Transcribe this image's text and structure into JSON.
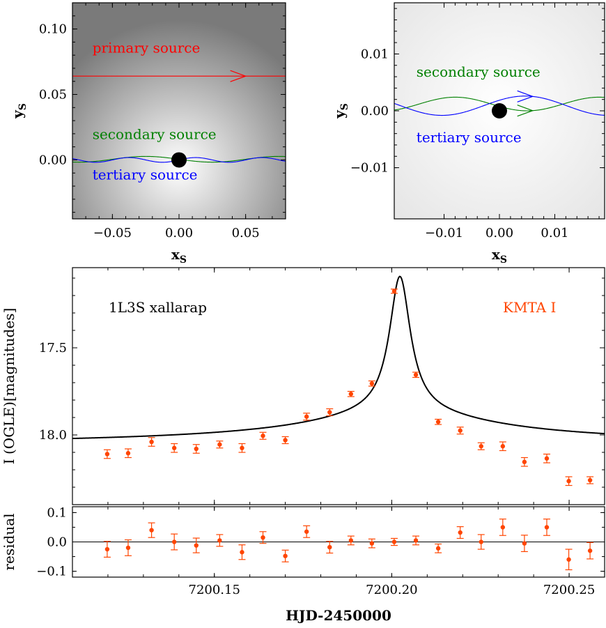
{
  "chart_data": [
    {
      "type": "line",
      "panel": "top-left",
      "xlabel": "x",
      "xlabel_sub": "S",
      "ylabel": "y",
      "ylabel_sub": "S",
      "xlim": [
        -0.08,
        0.08
      ],
      "ylim": [
        -0.045,
        0.12
      ],
      "xticks": [
        -0.05,
        0.0,
        0.05
      ],
      "xtick_labels": [
        "−0.05",
        "0.00",
        "0.05"
      ],
      "yticks": [
        0.0,
        0.05,
        0.1
      ],
      "ytick_labels": [
        "0.00",
        "0.05",
        "0.10"
      ],
      "lens": {
        "x": 0.0,
        "y": 0.0
      },
      "series": [
        {
          "name": "primary source",
          "color": "#ff0000",
          "y": 0.064,
          "amplitude": 0.0,
          "period": 1,
          "phase": 0,
          "arrow_x": 0.05
        },
        {
          "name": "secondary source",
          "color": "#008000",
          "y": 0.0005,
          "amplitude": 0.0022,
          "period": 0.1,
          "phase": 3.14,
          "arrow_x": null
        },
        {
          "name": "tertiary source",
          "color": "#0000ff",
          "y": 0.0,
          "amplitude": 0.0018,
          "period": 0.05,
          "phase": 0,
          "arrow_x": null
        }
      ],
      "labels": [
        {
          "text": "primary source",
          "color": "#ff0000",
          "x": -0.065,
          "y": 0.082
        },
        {
          "text": "secondary source",
          "color": "#008000",
          "x": -0.065,
          "y": 0.016
        },
        {
          "text": "tertiary source",
          "color": "#0000ff",
          "x": -0.065,
          "y": -0.015
        }
      ]
    },
    {
      "type": "line",
      "panel": "top-right",
      "xlabel": "x",
      "xlabel_sub": "S",
      "ylabel": "y",
      "ylabel_sub": "S",
      "xlim": [
        -0.019,
        0.019
      ],
      "ylim": [
        -0.019,
        0.019
      ],
      "xticks": [
        -0.01,
        0.0,
        0.01
      ],
      "xtick_labels": [
        "−0.01",
        "0.00",
        "0.01"
      ],
      "yticks": [
        -0.01,
        0.0,
        0.01
      ],
      "ytick_labels": [
        "−0.01",
        "0.00",
        "0.01"
      ],
      "lens": {
        "x": 0.0,
        "y": 0.0
      },
      "series": [
        {
          "name": "secondary source",
          "color": "#008000",
          "y": 0.0012,
          "amplitude": 0.0012,
          "period": 0.026,
          "phase": 3.5,
          "arrow_x": 0.006
        },
        {
          "name": "tertiary source",
          "color": "#0000ff",
          "y": 0.0009,
          "amplitude": 0.0017,
          "period": 0.03,
          "phase": 0.6,
          "arrow_x": 0.006
        }
      ],
      "labels": [
        {
          "text": "secondary source",
          "color": "#008000",
          "x": -0.015,
          "y": 0.006
        },
        {
          "text": "tertiary source",
          "color": "#0000ff",
          "x": -0.015,
          "y": -0.0055
        }
      ]
    },
    {
      "type": "scatter",
      "panel": "light-curve",
      "xlabel": "HJD-2450000",
      "ylabel": "I (OGLE)[magnitudes]",
      "xlim": [
        7200.11,
        7200.26
      ],
      "ylim": [
        18.4,
        17.04
      ],
      "xticks": [
        7200.15,
        7200.2,
        7200.25
      ],
      "xtick_labels": [
        "7200.15",
        "7200.20",
        "7200.25"
      ],
      "yticks": [
        17.5,
        18.0
      ],
      "ytick_labels": [
        "17.5",
        "18.0"
      ],
      "model_label": "1L3S xallarap",
      "data_label": "KMTA I",
      "data_color": "#ff4500",
      "model": {
        "baseline": 18.07,
        "t0": 7200.2023,
        "tau": 0.0036,
        "peak": 17.09,
        "wing": 0.205,
        "wing_tau": 0.045
      },
      "points": [
        {
          "x": 7200.1198,
          "y": 18.11,
          "err": 0.025
        },
        {
          "x": 7200.1257,
          "y": 18.105,
          "err": 0.025
        },
        {
          "x": 7200.1323,
          "y": 18.04,
          "err": 0.025
        },
        {
          "x": 7200.1387,
          "y": 18.075,
          "err": 0.025
        },
        {
          "x": 7200.1449,
          "y": 18.08,
          "err": 0.025
        },
        {
          "x": 7200.1515,
          "y": 18.055,
          "err": 0.02
        },
        {
          "x": 7200.1578,
          "y": 18.075,
          "err": 0.025
        },
        {
          "x": 7200.1637,
          "y": 18.005,
          "err": 0.02
        },
        {
          "x": 7200.17,
          "y": 18.03,
          "err": 0.02
        },
        {
          "x": 7200.176,
          "y": 17.895,
          "err": 0.02
        },
        {
          "x": 7200.1825,
          "y": 17.87,
          "err": 0.02
        },
        {
          "x": 7200.1885,
          "y": 17.765,
          "err": 0.015
        },
        {
          "x": 7200.1944,
          "y": 17.705,
          "err": 0.015
        },
        {
          "x": 7200.2007,
          "y": 17.175,
          "err": 0.012
        },
        {
          "x": 7200.2068,
          "y": 17.655,
          "err": 0.015
        },
        {
          "x": 7200.2131,
          "y": 17.925,
          "err": 0.015
        },
        {
          "x": 7200.2193,
          "y": 17.975,
          "err": 0.02
        },
        {
          "x": 7200.2252,
          "y": 18.065,
          "err": 0.02
        },
        {
          "x": 7200.2313,
          "y": 18.065,
          "err": 0.025
        },
        {
          "x": 7200.2374,
          "y": 18.155,
          "err": 0.025
        },
        {
          "x": 7200.2437,
          "y": 18.135,
          "err": 0.025
        },
        {
          "x": 7200.2499,
          "y": 18.265,
          "err": 0.025
        },
        {
          "x": 7200.2559,
          "y": 18.26,
          "err": 0.02
        }
      ]
    },
    {
      "type": "scatter",
      "panel": "residual",
      "xlabel": "HJD-2450000",
      "ylabel": "residual",
      "xlim": [
        7200.11,
        7200.26
      ],
      "ylim": [
        -0.12,
        0.12
      ],
      "yticks": [
        -0.1,
        0.0,
        0.1
      ],
      "ytick_labels": [
        "−0.1",
        "0.0",
        "0.1"
      ],
      "data_color": "#ff4500",
      "points": [
        {
          "x": 7200.1198,
          "y": -0.025,
          "err": 0.027
        },
        {
          "x": 7200.1257,
          "y": -0.02,
          "err": 0.027
        },
        {
          "x": 7200.1323,
          "y": 0.04,
          "err": 0.025
        },
        {
          "x": 7200.1387,
          "y": 0.0,
          "err": 0.027
        },
        {
          "x": 7200.1449,
          "y": -0.012,
          "err": 0.025
        },
        {
          "x": 7200.1515,
          "y": 0.005,
          "err": 0.02
        },
        {
          "x": 7200.1578,
          "y": -0.035,
          "err": 0.025
        },
        {
          "x": 7200.1637,
          "y": 0.015,
          "err": 0.02
        },
        {
          "x": 7200.17,
          "y": -0.048,
          "err": 0.02
        },
        {
          "x": 7200.176,
          "y": 0.035,
          "err": 0.02
        },
        {
          "x": 7200.1825,
          "y": -0.018,
          "err": 0.02
        },
        {
          "x": 7200.1885,
          "y": 0.005,
          "err": 0.015
        },
        {
          "x": 7200.1944,
          "y": -0.005,
          "err": 0.015
        },
        {
          "x": 7200.2007,
          "y": 0.0,
          "err": 0.012
        },
        {
          "x": 7200.2068,
          "y": 0.005,
          "err": 0.015
        },
        {
          "x": 7200.2131,
          "y": -0.022,
          "err": 0.015
        },
        {
          "x": 7200.2193,
          "y": 0.032,
          "err": 0.02
        },
        {
          "x": 7200.2252,
          "y": 0.0,
          "err": 0.025
        },
        {
          "x": 7200.2313,
          "y": 0.05,
          "err": 0.028
        },
        {
          "x": 7200.2374,
          "y": -0.005,
          "err": 0.028
        },
        {
          "x": 7200.2437,
          "y": 0.05,
          "err": 0.028
        },
        {
          "x": 7200.2499,
          "y": -0.06,
          "err": 0.035
        },
        {
          "x": 7200.2559,
          "y": -0.03,
          "err": 0.028
        }
      ]
    }
  ]
}
